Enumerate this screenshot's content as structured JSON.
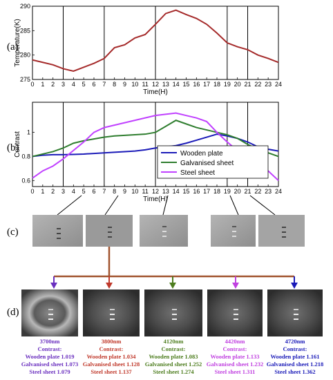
{
  "panel_labels": [
    "(a)",
    "(b)",
    "(c)",
    "(d)"
  ],
  "colors": {
    "temperature": "#a52a2a",
    "wooden": "#1a1ab8",
    "galvanised": "#2e7d2e",
    "steel": "#c040ff",
    "arrow_main": "#a0522d",
    "img_bg": "#9a9a9a"
  },
  "chart_data": [
    {
      "type": "line",
      "xlabel": "Time(H)",
      "ylabel": "Temperature(K)",
      "xlim": [
        0,
        24
      ],
      "ylim": [
        275,
        290
      ],
      "xticks": [
        0,
        1,
        2,
        3,
        4,
        5,
        6,
        7,
        8,
        9,
        10,
        11,
        12,
        13,
        14,
        15,
        16,
        17,
        18,
        19,
        20,
        21,
        22,
        23,
        24
      ],
      "yticks": [
        275,
        280,
        285,
        290
      ],
      "x": [
        0,
        1,
        2,
        3,
        4,
        5,
        6,
        7,
        8,
        9,
        10,
        11,
        12,
        13,
        14,
        15,
        16,
        17,
        18,
        19,
        20,
        21,
        22,
        23,
        24
      ],
      "series": [
        {
          "values": [
            279.0,
            278.5,
            278.0,
            277.2,
            276.7,
            277.5,
            278.3,
            279.3,
            281.5,
            282.1,
            283.5,
            284.2,
            286.3,
            288.5,
            289.2,
            288.3,
            287.5,
            286.3,
            284.5,
            282.5,
            281.7,
            281.1,
            280.0,
            279.3,
            278.5
          ]
        }
      ],
      "grid": false,
      "marker_lines_x": [
        3,
        7,
        12,
        19,
        21
      ]
    },
    {
      "type": "line",
      "xlabel": "Time(H)",
      "ylabel": "Contrast",
      "xlim": [
        0,
        24
      ],
      "ylim": [
        0.55,
        1.25
      ],
      "xticks": [
        0,
        1,
        2,
        3,
        4,
        5,
        6,
        7,
        8,
        9,
        10,
        11,
        12,
        13,
        14,
        15,
        16,
        17,
        18,
        19,
        20,
        21,
        22,
        23,
        24
      ],
      "yticks": [
        0.6,
        0.8,
        1
      ],
      "x": [
        0,
        1,
        2,
        3,
        4,
        5,
        6,
        7,
        8,
        9,
        10,
        11,
        12,
        13,
        14,
        15,
        16,
        17,
        18,
        19,
        20,
        21,
        22,
        23,
        24
      ],
      "legend": "right",
      "series": [
        {
          "name": "Wooden plate",
          "values": [
            0.8,
            0.81,
            0.815,
            0.815,
            0.817,
            0.82,
            0.825,
            0.83,
            0.835,
            0.84,
            0.845,
            0.855,
            0.87,
            0.88,
            0.89,
            0.91,
            0.935,
            0.96,
            0.985,
            0.97,
            0.95,
            0.92,
            0.88,
            0.86,
            0.845
          ]
        },
        {
          "name": "Galvanised sheet",
          "values": [
            0.8,
            0.82,
            0.84,
            0.87,
            0.91,
            0.93,
            0.945,
            0.96,
            0.97,
            0.975,
            0.98,
            0.985,
            1.0,
            1.05,
            1.1,
            1.07,
            1.04,
            1.02,
            1.0,
            0.98,
            0.95,
            0.9,
            0.86,
            0.83,
            0.8
          ]
        },
        {
          "name": "Steel sheet",
          "values": [
            0.62,
            0.68,
            0.72,
            0.78,
            0.85,
            0.92,
            1.0,
            1.04,
            1.06,
            1.08,
            1.1,
            1.12,
            1.14,
            1.15,
            1.16,
            1.14,
            1.12,
            1.09,
            1.0,
            0.92,
            0.85,
            0.77,
            0.72,
            0.68,
            0.6
          ]
        }
      ],
      "grid": false,
      "marker_lines_x": [
        3,
        7,
        12,
        19,
        21
      ]
    }
  ],
  "wavelength_panels": [
    {
      "wavelength": "3700nm",
      "contrast_label": "Contrast:",
      "wooden": "Wooden plate 1.019",
      "galvanised": "Galvanised sheet 1.073",
      "steel": "Steel sheet 1.079",
      "color": "#6a2fbf"
    },
    {
      "wavelength": "3800nm",
      "contrast_label": "Contrast:",
      "wooden": "Wooden plate 1.034",
      "galvanised": "Galvanised sheet 1.128",
      "steel": "Steel sheet 1.137",
      "color": "#c0392b"
    },
    {
      "wavelength": "4120nm",
      "contrast_label": "Contrast:",
      "wooden": "Wooden plate 1.083",
      "galvanised": "Galvanised sheet 1.252",
      "steel": "Steel sheet 1.274",
      "color": "#4d7d1e"
    },
    {
      "wavelength": "4420nm",
      "contrast_label": "Contrast:",
      "wooden": "Wooden plate 1.133",
      "galvanised": "Galvanised sheet 1.232",
      "steel": "Steel sheet 1.311",
      "color": "#c040e0"
    },
    {
      "wavelength": "4720nm",
      "contrast_label": "Contrast:",
      "wooden": "Wooden plate 1.161",
      "galvanised": "Galvanised sheet 1.218",
      "steel": "Steel sheet 1.362",
      "color": "#1a1ab8"
    }
  ]
}
